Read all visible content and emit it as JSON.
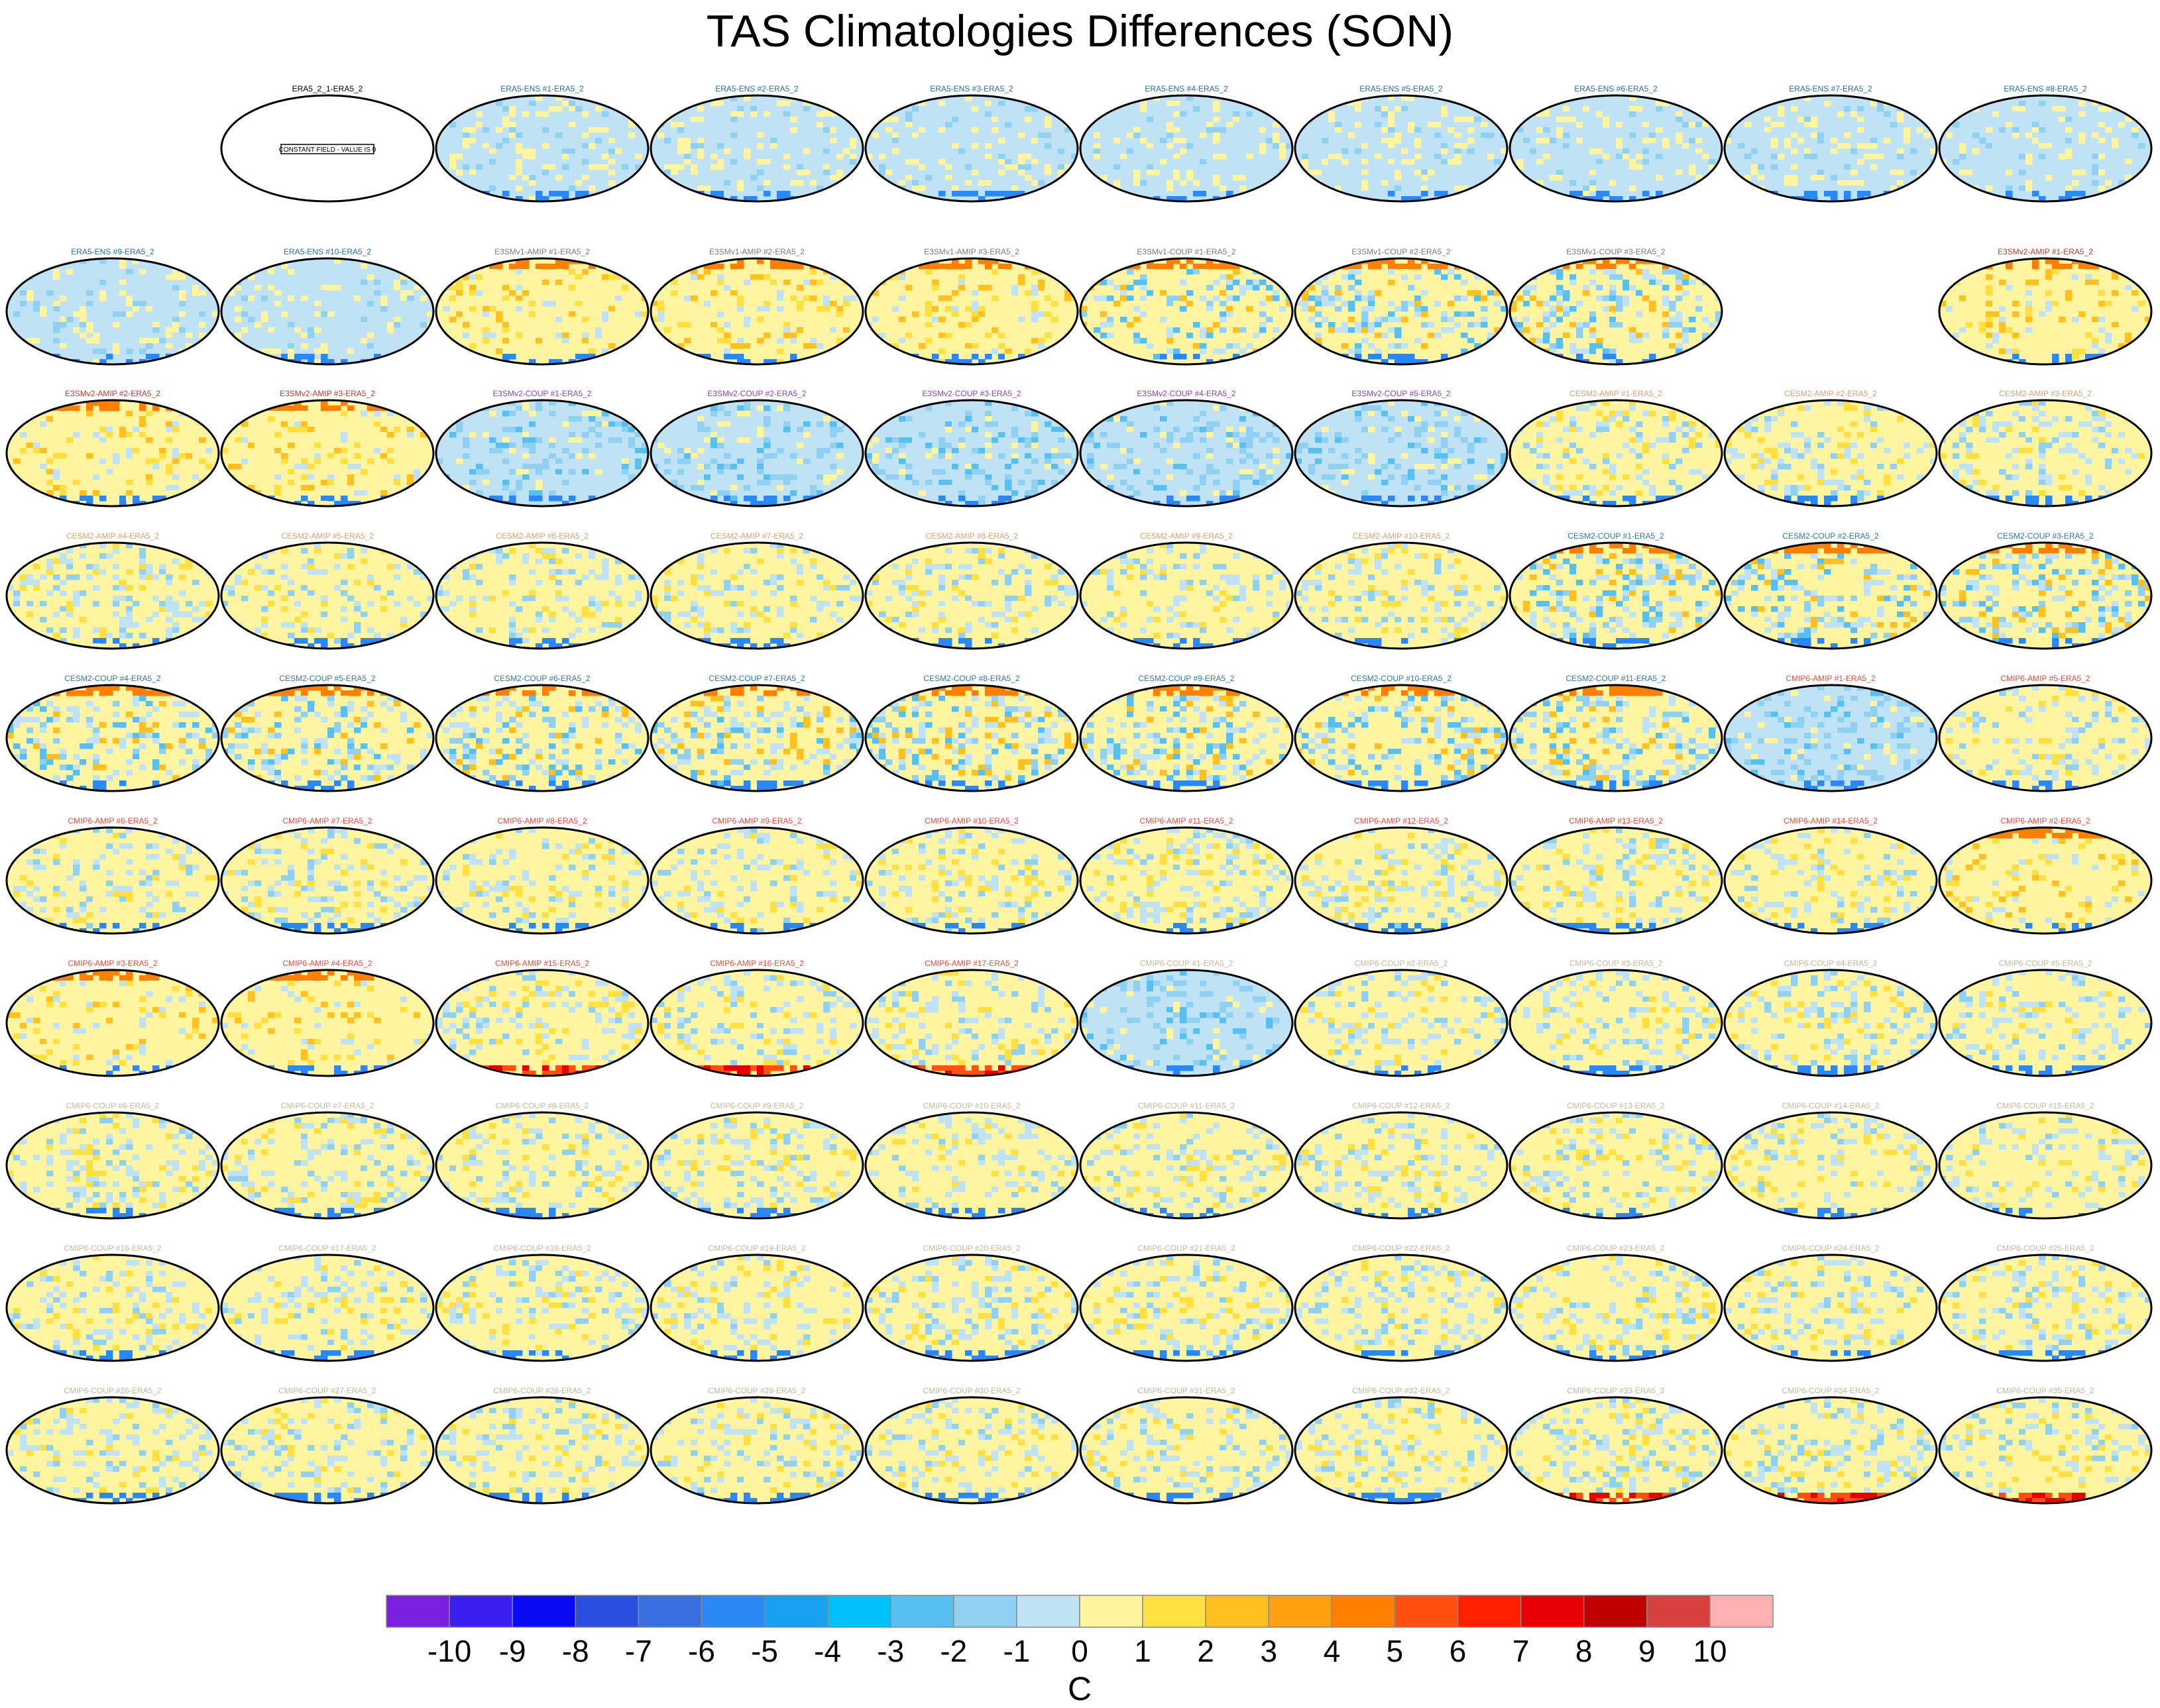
{
  "title": "TAS Climatologies Differences (SON)",
  "chart_data": {
    "type": "heatmap",
    "title": "TAS Climatologies Differences (SON)",
    "projection": "Robinson (Pacific-centered), 10 x 10 panel grid",
    "reference_panel": {
      "label": "ERA5_2_1-ERA5_2",
      "note": "CONSTANT FIELD - VALUE IS 0"
    },
    "panels": [
      {
        "label": "ERA5_2_1-ERA5_2",
        "row": 0,
        "col": 1,
        "color": "#000000",
        "pattern": "constant"
      },
      {
        "label": "ERA5-ENS   #1-ERA5_2",
        "row": 0,
        "col": 2,
        "color": "#1f6fb0",
        "pattern": "ens"
      },
      {
        "label": "ERA5-ENS   #2-ERA5_2",
        "row": 0,
        "col": 3,
        "color": "#1f6fb0",
        "pattern": "ens"
      },
      {
        "label": "ERA5-ENS   #3-ERA5_2",
        "row": 0,
        "col": 4,
        "color": "#1f6fb0",
        "pattern": "ens"
      },
      {
        "label": "ERA5-ENS   #4-ERA5_2",
        "row": 0,
        "col": 5,
        "color": "#1f6fb0",
        "pattern": "ens"
      },
      {
        "label": "ERA5-ENS   #5-ERA5_2",
        "row": 0,
        "col": 6,
        "color": "#1f6fb0",
        "pattern": "ens"
      },
      {
        "label": "ERA5-ENS   #6-ERA5_2",
        "row": 0,
        "col": 7,
        "color": "#1f6fb0",
        "pattern": "ens"
      },
      {
        "label": "ERA5-ENS   #7-ERA5_2",
        "row": 0,
        "col": 8,
        "color": "#1f6fb0",
        "pattern": "ens"
      },
      {
        "label": "ERA5-ENS   #8-ERA5_2",
        "row": 0,
        "col": 9,
        "color": "#1f6fb0",
        "pattern": "ens"
      },
      {
        "label": "ERA5-ENS   #9-ERA5_2",
        "row": 1,
        "col": 0,
        "color": "#1f6fb0",
        "pattern": "ens"
      },
      {
        "label": "ERA5-ENS   #10-ERA5_2",
        "row": 1,
        "col": 1,
        "color": "#1f6fb0",
        "pattern": "ens"
      },
      {
        "label": "E3SMv1-AMIP #1-ERA5_2",
        "row": 1,
        "col": 2,
        "color": "#7a7a7a",
        "pattern": "warm"
      },
      {
        "label": "E3SMv1-AMIP #2-ERA5_2",
        "row": 1,
        "col": 3,
        "color": "#7a7a7a",
        "pattern": "warm"
      },
      {
        "label": "E3SMv1-AMIP #3-ERA5_2",
        "row": 1,
        "col": 4,
        "color": "#7a7a7a",
        "pattern": "warm"
      },
      {
        "label": "E3SMv1-COUP #1-ERA5_2",
        "row": 1,
        "col": 5,
        "color": "#7a7a7a",
        "pattern": "coupled"
      },
      {
        "label": "E3SMv1-COUP #2-ERA5_2",
        "row": 1,
        "col": 6,
        "color": "#7a7a7a",
        "pattern": "coupled"
      },
      {
        "label": "E3SMv1-COUP #3-ERA5_2",
        "row": 1,
        "col": 7,
        "color": "#7a7a7a",
        "pattern": "coupled"
      },
      {
        "label": "E3SMv2-AMIP #1-ERA5_2",
        "row": 1,
        "col": 9,
        "color": "#c0392b",
        "pattern": "warm"
      },
      {
        "label": "E3SMv2-AMIP #2-ERA5_2",
        "row": 2,
        "col": 0,
        "color": "#c0392b",
        "pattern": "warm"
      },
      {
        "label": "E3SMv2-AMIP #3-ERA5_2",
        "row": 2,
        "col": 1,
        "color": "#c0392b",
        "pattern": "warm"
      },
      {
        "label": "E3SMv2-COUP #1-ERA5_2",
        "row": 2,
        "col": 2,
        "color": "#8e44ad",
        "pattern": "cool"
      },
      {
        "label": "E3SMv2-COUP #2-ERA5_2",
        "row": 2,
        "col": 3,
        "color": "#8e44ad",
        "pattern": "cool"
      },
      {
        "label": "E3SMv2-COUP #3-ERA5_2",
        "row": 2,
        "col": 4,
        "color": "#8e44ad",
        "pattern": "cool"
      },
      {
        "label": "E3SMv2-COUP #4-ERA5_2",
        "row": 2,
        "col": 5,
        "color": "#8e44ad",
        "pattern": "cool"
      },
      {
        "label": "E3SMv2-COUP #5-ERA5_2",
        "row": 2,
        "col": 6,
        "color": "#8e44ad",
        "pattern": "cool"
      },
      {
        "label": "CESM2-AMIP #1-ERA5_2",
        "row": 2,
        "col": 7,
        "color": "#d4a373",
        "pattern": "mixed"
      },
      {
        "label": "CESM2-AMIP #2-ERA5_2",
        "row": 2,
        "col": 8,
        "color": "#d4a373",
        "pattern": "mixed"
      },
      {
        "label": "CESM2-AMIP #3-ERA5_2",
        "row": 2,
        "col": 9,
        "color": "#d4a373",
        "pattern": "mixed"
      },
      {
        "label": "CESM2-AMIP #4-ERA5_2",
        "row": 3,
        "col": 0,
        "color": "#d4a373",
        "pattern": "mixed"
      },
      {
        "label": "CESM2-AMIP #5-ERA5_2",
        "row": 3,
        "col": 1,
        "color": "#d4a373",
        "pattern": "mixed"
      },
      {
        "label": "CESM2-AMIP #6-ERA5_2",
        "row": 3,
        "col": 2,
        "color": "#d4a373",
        "pattern": "mixed"
      },
      {
        "label": "CESM2-AMIP #7-ERA5_2",
        "row": 3,
        "col": 3,
        "color": "#d4a373",
        "pattern": "mixed"
      },
      {
        "label": "CESM2-AMIP #8-ERA5_2",
        "row": 3,
        "col": 4,
        "color": "#d4a373",
        "pattern": "mixed"
      },
      {
        "label": "CESM2-AMIP #9-ERA5_2",
        "row": 3,
        "col": 5,
        "color": "#d4a373",
        "pattern": "mixed"
      },
      {
        "label": "CESM2-AMIP #10-ERA5_2",
        "row": 3,
        "col": 6,
        "color": "#d4a373",
        "pattern": "mixed"
      },
      {
        "label": "CESM2-COUP #1-ERA5_2",
        "row": 3,
        "col": 7,
        "color": "#2c7a9b",
        "pattern": "coupled"
      },
      {
        "label": "CESM2-COUP #2-ERA5_2",
        "row": 3,
        "col": 8,
        "color": "#2c7a9b",
        "pattern": "coupled"
      },
      {
        "label": "CESM2-COUP #3-ERA5_2",
        "row": 3,
        "col": 9,
        "color": "#2c7a9b",
        "pattern": "coupled"
      },
      {
        "label": "CESM2-COUP #4-ERA5_2",
        "row": 4,
        "col": 0,
        "color": "#2c7a9b",
        "pattern": "coupled"
      },
      {
        "label": "CESM2-COUP #5-ERA5_2",
        "row": 4,
        "col": 1,
        "color": "#2c7a9b",
        "pattern": "coupled"
      },
      {
        "label": "CESM2-COUP #6-ERA5_2",
        "row": 4,
        "col": 2,
        "color": "#2c7a9b",
        "pattern": "coupled"
      },
      {
        "label": "CESM2-COUP #7-ERA5_2",
        "row": 4,
        "col": 3,
        "color": "#2c7a9b",
        "pattern": "coupled"
      },
      {
        "label": "CESM2-COUP #8-ERA5_2",
        "row": 4,
        "col": 4,
        "color": "#2c7a9b",
        "pattern": "coupled"
      },
      {
        "label": "CESM2-COUP #9-ERA5_2",
        "row": 4,
        "col": 5,
        "color": "#2c7a9b",
        "pattern": "coupled"
      },
      {
        "label": "CESM2-COUP #10-ERA5_2",
        "row": 4,
        "col": 6,
        "color": "#2c7a9b",
        "pattern": "coupled"
      },
      {
        "label": "CESM2-COUP #11-ERA5_2",
        "row": 4,
        "col": 7,
        "color": "#2c7a9b",
        "pattern": "coupled"
      },
      {
        "label": "CMIP6-AMIP #1-ERA5_2",
        "row": 4,
        "col": 8,
        "color": "#e74c3c",
        "pattern": "cool"
      },
      {
        "label": "CMIP6-AMIP #5-ERA5_2",
        "row": 4,
        "col": 9,
        "color": "#e74c3c",
        "pattern": "mixed"
      },
      {
        "label": "CMIP6-AMIP #6-ERA5_2",
        "row": 5,
        "col": 0,
        "color": "#e74c3c",
        "pattern": "mixed"
      },
      {
        "label": "CMIP6-AMIP #7-ERA5_2",
        "row": 5,
        "col": 1,
        "color": "#e74c3c",
        "pattern": "mixed"
      },
      {
        "label": "CMIP6-AMIP #8-ERA5_2",
        "row": 5,
        "col": 2,
        "color": "#e74c3c",
        "pattern": "mixed"
      },
      {
        "label": "CMIP6-AMIP #9-ERA5_2",
        "row": 5,
        "col": 3,
        "color": "#e74c3c",
        "pattern": "mixed"
      },
      {
        "label": "CMIP6-AMIP #10-ERA5_2",
        "row": 5,
        "col": 4,
        "color": "#e74c3c",
        "pattern": "mixed"
      },
      {
        "label": "CMIP6-AMIP #11-ERA5_2",
        "row": 5,
        "col": 5,
        "color": "#e74c3c",
        "pattern": "mixed"
      },
      {
        "label": "CMIP6-AMIP #12-ERA5_2",
        "row": 5,
        "col": 6,
        "color": "#e74c3c",
        "pattern": "mixed"
      },
      {
        "label": "CMIP6-AMIP #13-ERA5_2",
        "row": 5,
        "col": 7,
        "color": "#e74c3c",
        "pattern": "mixed"
      },
      {
        "label": "CMIP6-AMIP #14-ERA5_2",
        "row": 5,
        "col": 8,
        "color": "#e74c3c",
        "pattern": "mixed"
      },
      {
        "label": "CMIP6-AMIP #2-ERA5_2",
        "row": 5,
        "col": 9,
        "color": "#e74c3c",
        "pattern": "warm"
      },
      {
        "label": "CMIP6-AMIP #3-ERA5_2",
        "row": 6,
        "col": 0,
        "color": "#e74c3c",
        "pattern": "warm"
      },
      {
        "label": "CMIP6-AMIP #4-ERA5_2",
        "row": 6,
        "col": 1,
        "color": "#e74c3c",
        "pattern": "warm"
      },
      {
        "label": "CMIP6-AMIP #15-ERA5_2",
        "row": 6,
        "col": 2,
        "color": "#e74c3c",
        "pattern": "hot"
      },
      {
        "label": "CMIP6-AMIP #16-ERA5_2",
        "row": 6,
        "col": 3,
        "color": "#e74c3c",
        "pattern": "hot"
      },
      {
        "label": "CMIP6-AMIP #17-ERA5_2",
        "row": 6,
        "col": 4,
        "color": "#e74c3c",
        "pattern": "hot"
      },
      {
        "label": "CMIP6-COUP #1-ERA5_2",
        "row": 6,
        "col": 5,
        "color": "#c8b89a",
        "pattern": "cool"
      },
      {
        "label": "CMIP6-COUP #2-ERA5_2",
        "row": 6,
        "col": 6,
        "color": "#c8b89a",
        "pattern": "mixed"
      },
      {
        "label": "CMIP6-COUP #3-ERA5_2",
        "row": 6,
        "col": 7,
        "color": "#c8b89a",
        "pattern": "mixed"
      },
      {
        "label": "CMIP6-COUP #4-ERA5_2",
        "row": 6,
        "col": 8,
        "color": "#c8b89a",
        "pattern": "mixed"
      },
      {
        "label": "CMIP6-COUP #5-ERA5_2",
        "row": 6,
        "col": 9,
        "color": "#c8b89a",
        "pattern": "mixed"
      },
      {
        "label": "CMIP6-COUP #6-ERA5_2",
        "row": 7,
        "col": 0,
        "color": "#c8b89a",
        "pattern": "mixed"
      },
      {
        "label": "CMIP6-COUP #7-ERA5_2",
        "row": 7,
        "col": 1,
        "color": "#c8b89a",
        "pattern": "mixed"
      },
      {
        "label": "CMIP6-COUP #8-ERA5_2",
        "row": 7,
        "col": 2,
        "color": "#c8b89a",
        "pattern": "mixed"
      },
      {
        "label": "CMIP6-COUP #9-ERA5_2",
        "row": 7,
        "col": 3,
        "color": "#c8b89a",
        "pattern": "mixed"
      },
      {
        "label": "CMIP6-COUP #10-ERA5_2",
        "row": 7,
        "col": 4,
        "color": "#c8b89a",
        "pattern": "mixed"
      },
      {
        "label": "CMIP6-COUP #11-ERA5_2",
        "row": 7,
        "col": 5,
        "color": "#c8b89a",
        "pattern": "mixed"
      },
      {
        "label": "CMIP6-COUP #12-ERA5_2",
        "row": 7,
        "col": 6,
        "color": "#c8b89a",
        "pattern": "mixed"
      },
      {
        "label": "CMIP6-COUP #13-ERA5_2",
        "row": 7,
        "col": 7,
        "color": "#c8b89a",
        "pattern": "mixed"
      },
      {
        "label": "CMIP6-COUP #14-ERA5_2",
        "row": 7,
        "col": 8,
        "color": "#c8b89a",
        "pattern": "mixed"
      },
      {
        "label": "CMIP6-COUP #15-ERA5_2",
        "row": 7,
        "col": 9,
        "color": "#c8b89a",
        "pattern": "mixed"
      },
      {
        "label": "CMIP6-COUP #16-ERA5_2",
        "row": 8,
        "col": 0,
        "color": "#c8b89a",
        "pattern": "mixed"
      },
      {
        "label": "CMIP6-COUP #17-ERA5_2",
        "row": 8,
        "col": 1,
        "color": "#c8b89a",
        "pattern": "mixed"
      },
      {
        "label": "CMIP6-COUP #18-ERA5_2",
        "row": 8,
        "col": 2,
        "color": "#c8b89a",
        "pattern": "mixed"
      },
      {
        "label": "CMIP6-COUP #19-ERA5_2",
        "row": 8,
        "col": 3,
        "color": "#c8b89a",
        "pattern": "mixed"
      },
      {
        "label": "CMIP6-COUP #20-ERA5_2",
        "row": 8,
        "col": 4,
        "color": "#c8b89a",
        "pattern": "mixed"
      },
      {
        "label": "CMIP6-COUP #21-ERA5_2",
        "row": 8,
        "col": 5,
        "color": "#c8b89a",
        "pattern": "mixed"
      },
      {
        "label": "CMIP6-COUP #22-ERA5_2",
        "row": 8,
        "col": 6,
        "color": "#c8b89a",
        "pattern": "mixed"
      },
      {
        "label": "CMIP6-COUP #23-ERA5_2",
        "row": 8,
        "col": 7,
        "color": "#c8b89a",
        "pattern": "mixed"
      },
      {
        "label": "CMIP6-COUP #24-ERA5_2",
        "row": 8,
        "col": 8,
        "color": "#c8b89a",
        "pattern": "mixed"
      },
      {
        "label": "CMIP6-COUP #25-ERA5_2",
        "row": 8,
        "col": 9,
        "color": "#c8b89a",
        "pattern": "mixed"
      },
      {
        "label": "CMIP6-COUP #26-ERA5_2",
        "row": 9,
        "col": 0,
        "color": "#c8b89a",
        "pattern": "mixed"
      },
      {
        "label": "CMIP6-COUP #27-ERA5_2",
        "row": 9,
        "col": 1,
        "color": "#c8b89a",
        "pattern": "mixed"
      },
      {
        "label": "CMIP6-COUP #28-ERA5_2",
        "row": 9,
        "col": 2,
        "color": "#c8b89a",
        "pattern": "mixed"
      },
      {
        "label": "CMIP6-COUP #29-ERA5_2",
        "row": 9,
        "col": 3,
        "color": "#c8b89a",
        "pattern": "mixed"
      },
      {
        "label": "CMIP6-COUP #30-ERA5_2",
        "row": 9,
        "col": 4,
        "color": "#c8b89a",
        "pattern": "mixed"
      },
      {
        "label": "CMIP6-COUP #31-ERA5_2",
        "row": 9,
        "col": 5,
        "color": "#c8b89a",
        "pattern": "mixed"
      },
      {
        "label": "CMIP6-COUP #32-ERA5_2",
        "row": 9,
        "col": 6,
        "color": "#c8b89a",
        "pattern": "mixed"
      },
      {
        "label": "CMIP6-COUP #33-ERA5_2",
        "row": 9,
        "col": 7,
        "color": "#c8b89a",
        "pattern": "hot"
      },
      {
        "label": "CMIP6-COUP #34-ERA5_2",
        "row": 9,
        "col": 8,
        "color": "#c8b89a",
        "pattern": "hot"
      },
      {
        "label": "CMIP6-COUP #35-ERA5_2",
        "row": 9,
        "col": 9,
        "color": "#c8b89a",
        "pattern": "hot"
      }
    ],
    "colorbar": {
      "unit": "C",
      "levels": [
        -10,
        -9,
        -8,
        -7,
        -6,
        -5,
        -4,
        -3,
        -2,
        -1,
        0,
        1,
        2,
        3,
        4,
        5,
        6,
        7,
        8,
        9,
        10
      ],
      "colors": [
        "#7b1fe0",
        "#3b1ff0",
        "#0a0af5",
        "#2a4fe0",
        "#3a6fe0",
        "#2a88f5",
        "#1aa0f0",
        "#00c0f8",
        "#58c0f0",
        "#90d0f0",
        "#bfe2f5",
        "#fff5a0",
        "#ffe040",
        "#ffc020",
        "#ffa010",
        "#ff8000",
        "#ff5010",
        "#ff2000",
        "#e80000",
        "#c00000",
        "#d84040",
        "#ffb0b0"
      ]
    }
  }
}
